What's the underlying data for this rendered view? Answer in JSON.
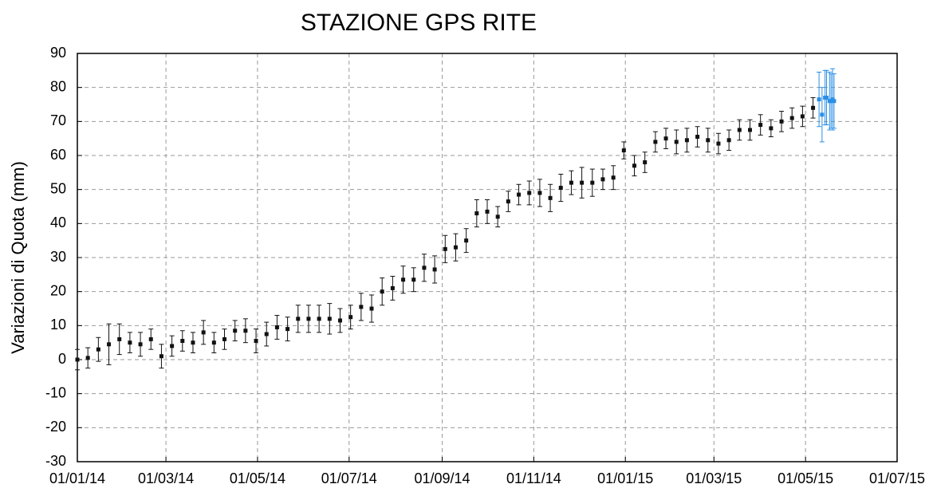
{
  "chart_data": {
    "type": "errorbar",
    "title": "STAZIONE GPS RITE",
    "y_label": "Variazioni di Quota (mm)",
    "xlim": [
      "01/01/14",
      "01/07/15"
    ],
    "xticks": [
      "01/01/14",
      "01/03/14",
      "01/05/14",
      "01/07/14",
      "01/09/14",
      "01/11/14",
      "01/01/15",
      "01/03/15",
      "01/05/15",
      "01/07/15"
    ],
    "ylim": [
      -30,
      90
    ],
    "yticks": [
      -30,
      -20,
      -10,
      0,
      10,
      20,
      30,
      40,
      50,
      60,
      70,
      80,
      90
    ],
    "grid": true,
    "series": [
      {
        "color": "#111111",
        "x": [
          "01/01/14",
          "08/01/14",
          "15/01/14",
          "22/01/14",
          "29/01/14",
          "05/02/14",
          "12/02/14",
          "19/02/14",
          "26/02/14",
          "05/03/14",
          "12/03/14",
          "19/03/14",
          "26/03/14",
          "02/04/14",
          "09/04/14",
          "16/04/14",
          "23/04/14",
          "30/04/14",
          "07/05/14",
          "14/05/14",
          "21/05/14",
          "28/05/14",
          "04/06/14",
          "11/06/14",
          "18/06/14",
          "25/06/14",
          "02/07/14",
          "09/07/14",
          "16/07/14",
          "23/07/14",
          "30/07/14",
          "06/08/14",
          "13/08/14",
          "20/08/14",
          "27/08/14",
          "03/09/14",
          "10/09/14",
          "17/09/14",
          "24/09/14",
          "01/10/14",
          "08/10/14",
          "15/10/14",
          "22/10/14",
          "29/10/14",
          "05/11/14",
          "12/11/14",
          "19/11/14",
          "26/11/14",
          "03/12/14",
          "10/12/14",
          "17/12/14",
          "24/12/14",
          "31/12/14",
          "07/01/15",
          "14/01/15",
          "21/01/15",
          "28/01/15",
          "04/02/15",
          "11/02/15",
          "18/02/15",
          "25/02/15",
          "04/03/15",
          "11/03/15",
          "18/03/15",
          "25/03/15",
          "01/04/15",
          "08/04/15",
          "15/04/15",
          "22/04/15",
          "29/04/15",
          "06/05/15"
        ],
        "values": [
          0,
          0.5,
          3,
          4.5,
          6,
          5,
          4.5,
          6,
          1,
          4,
          5.5,
          5,
          8,
          5,
          6,
          8.5,
          8.5,
          5.5,
          7.5,
          9.5,
          9,
          12,
          12,
          12,
          12,
          11.5,
          12.5,
          15.5,
          15,
          20,
          21,
          23.5,
          23.5,
          27,
          26.5,
          32.5,
          33,
          35,
          43,
          43.5,
          42,
          46.5,
          48.5,
          49,
          49,
          47.5,
          50.5,
          52,
          52,
          52,
          53,
          53.5,
          61.5,
          57,
          58,
          64,
          65,
          64,
          64.5,
          65.5,
          64.5,
          63.5,
          64.5,
          67.5,
          67.5,
          69,
          68,
          70,
          71,
          71.5,
          74
        ],
        "errors": [
          3,
          3,
          3.5,
          6,
          4.5,
          3,
          3.5,
          3,
          3.5,
          3,
          3,
          3,
          3.5,
          3,
          3,
          3,
          3.5,
          3.5,
          3.5,
          3.5,
          3.5,
          4,
          4,
          4,
          4.5,
          3.5,
          3.5,
          4,
          4,
          4,
          3.5,
          4,
          3.5,
          4,
          4,
          4,
          4,
          3.5,
          4,
          3.5,
          3,
          3,
          3,
          3.5,
          4,
          4,
          4,
          3.5,
          4.5,
          4,
          3,
          3.5,
          2.5,
          3,
          3,
          3,
          3,
          3.5,
          3.5,
          3,
          3.5,
          3,
          3,
          3,
          3,
          3,
          2.5,
          3,
          3,
          3,
          3
        ]
      },
      {
        "color": "#2b8fe6",
        "x": [
          "10/05/15",
          "12/05/15",
          "14/05/15",
          "15/05/15",
          "17/05/15",
          "18/05/15",
          "19/05/15",
          "20/05/15"
        ],
        "values": [
          76.5,
          72,
          77,
          77,
          76,
          76,
          76.5,
          76
        ],
        "errors": [
          8,
          8,
          8,
          8,
          8.5,
          8,
          9,
          8
        ]
      }
    ]
  }
}
